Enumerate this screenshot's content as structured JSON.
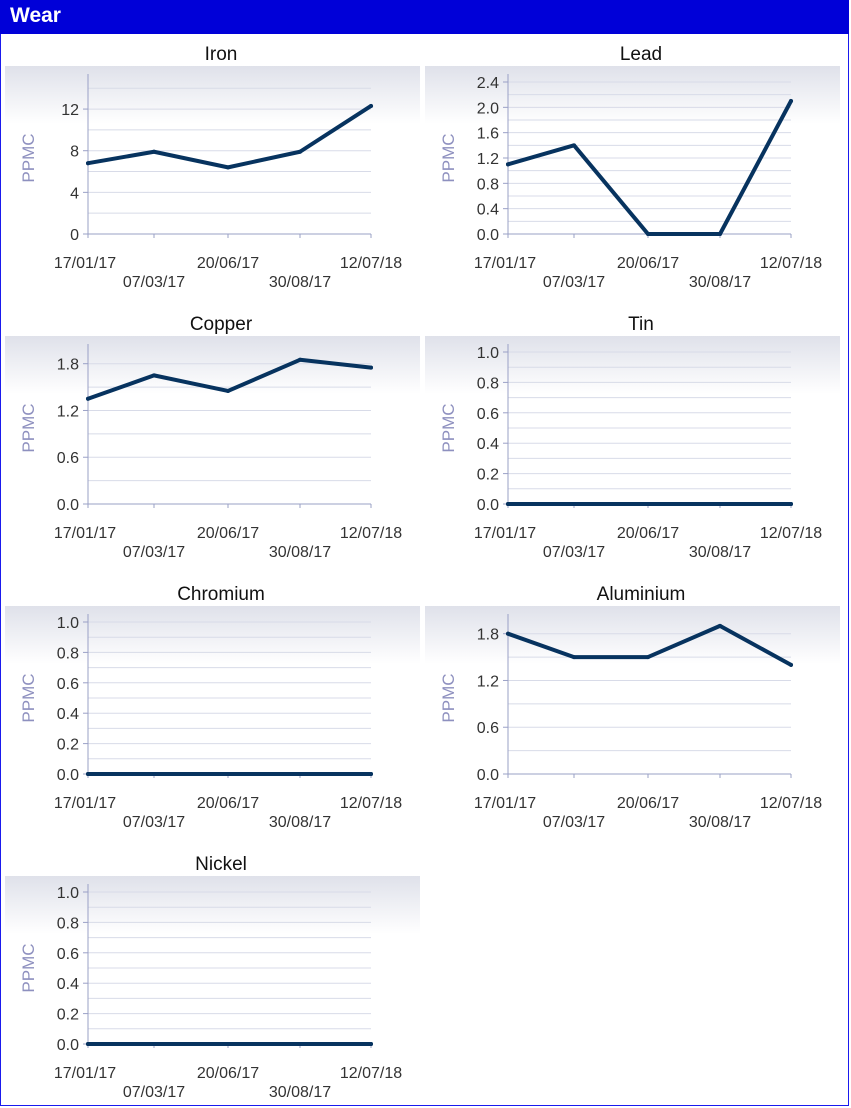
{
  "header": {
    "title": "Wear"
  },
  "colors": {
    "header_bg": "#0000d8",
    "series": "#07335f",
    "axis": "#9aa0c6",
    "tick_text": "#333333",
    "ylabel": "#8e90bf"
  },
  "chart_data": [
    {
      "type": "line",
      "title": "Iron",
      "ylabel": "PPMC",
      "x": [
        "17/01/17",
        "07/03/17",
        "20/06/17",
        "30/08/17",
        "12/07/18"
      ],
      "values": [
        6.8,
        7.9,
        6.4,
        7.9,
        12.3
      ],
      "ylim": [
        0,
        14.6
      ],
      "yticks": [
        "0",
        "4",
        "8",
        "12"
      ],
      "ytick_values": [
        0,
        4,
        8,
        12
      ],
      "grid_values": [
        0,
        2,
        4,
        6,
        8,
        10,
        12,
        14
      ]
    },
    {
      "type": "line",
      "title": "Lead",
      "ylabel": "PPMC",
      "x": [
        "17/01/17",
        "07/03/17",
        "20/06/17",
        "30/08/17",
        "12/07/18"
      ],
      "values": [
        1.1,
        1.4,
        0.0,
        0.0,
        2.1
      ],
      "ylim": [
        0,
        2.4
      ],
      "yticks": [
        "0.0",
        "0.4",
        "0.8",
        "1.2",
        "1.6",
        "2.0",
        "2.4"
      ],
      "ytick_values": [
        0,
        0.4,
        0.8,
        1.2,
        1.6,
        2.0,
        2.4
      ],
      "grid_values": [
        0,
        0.2,
        0.4,
        0.6,
        0.8,
        1.0,
        1.2,
        1.4,
        1.6,
        1.8,
        2.0,
        2.2,
        2.4
      ]
    },
    {
      "type": "line",
      "title": "Copper",
      "ylabel": "PPMC",
      "x": [
        "17/01/17",
        "07/03/17",
        "20/06/17",
        "30/08/17",
        "12/07/18"
      ],
      "values": [
        1.35,
        1.65,
        1.45,
        1.85,
        1.75
      ],
      "ylim": [
        0,
        1.95
      ],
      "yticks": [
        "0.0",
        "0.6",
        "1.2",
        "1.8"
      ],
      "ytick_values": [
        0,
        0.6,
        1.2,
        1.8
      ],
      "grid_values": [
        0,
        0.3,
        0.6,
        0.9,
        1.2,
        1.5,
        1.8
      ]
    },
    {
      "type": "line",
      "title": "Tin",
      "ylabel": "PPMC",
      "x": [
        "17/01/17",
        "07/03/17",
        "20/06/17",
        "30/08/17",
        "12/07/18"
      ],
      "values": [
        0,
        0,
        0,
        0,
        0
      ],
      "ylim": [
        0,
        1.0
      ],
      "yticks": [
        "0.0",
        "0.2",
        "0.4",
        "0.6",
        "0.8",
        "1.0"
      ],
      "ytick_values": [
        0,
        0.2,
        0.4,
        0.6,
        0.8,
        1.0
      ],
      "grid_values": [
        0,
        0.1,
        0.2,
        0.3,
        0.4,
        0.5,
        0.6,
        0.7,
        0.8,
        0.9,
        1.0
      ]
    },
    {
      "type": "line",
      "title": "Chromium",
      "ylabel": "PPMC",
      "x": [
        "17/01/17",
        "07/03/17",
        "20/06/17",
        "30/08/17",
        "12/07/18"
      ],
      "values": [
        0,
        0,
        0,
        0,
        0
      ],
      "ylim": [
        0,
        1.0
      ],
      "yticks": [
        "0.0",
        "0.2",
        "0.4",
        "0.6",
        "0.8",
        "1.0"
      ],
      "ytick_values": [
        0,
        0.2,
        0.4,
        0.6,
        0.8,
        1.0
      ],
      "grid_values": [
        0,
        0.1,
        0.2,
        0.3,
        0.4,
        0.5,
        0.6,
        0.7,
        0.8,
        0.9,
        1.0
      ]
    },
    {
      "type": "line",
      "title": "Aluminium",
      "ylabel": "PPMC",
      "x": [
        "17/01/17",
        "07/03/17",
        "20/06/17",
        "30/08/17",
        "12/07/18"
      ],
      "values": [
        1.8,
        1.5,
        1.5,
        1.9,
        1.4
      ],
      "ylim": [
        0,
        1.95
      ],
      "yticks": [
        "0.0",
        "0.6",
        "1.2",
        "1.8"
      ],
      "ytick_values": [
        0,
        0.6,
        1.2,
        1.8
      ],
      "grid_values": [
        0,
        0.3,
        0.6,
        0.9,
        1.2,
        1.5,
        1.8
      ]
    },
    {
      "type": "line",
      "title": "Nickel",
      "ylabel": "PPMC",
      "x": [
        "17/01/17",
        "07/03/17",
        "20/06/17",
        "30/08/17",
        "12/07/18"
      ],
      "values": [
        0,
        0,
        0,
        0,
        0
      ],
      "ylim": [
        0,
        1.0
      ],
      "yticks": [
        "0.0",
        "0.2",
        "0.4",
        "0.6",
        "0.8",
        "1.0"
      ],
      "ytick_values": [
        0,
        0.2,
        0.4,
        0.6,
        0.8,
        1.0
      ],
      "grid_values": [
        0,
        0.1,
        0.2,
        0.3,
        0.4,
        0.5,
        0.6,
        0.7,
        0.8,
        0.9,
        1.0
      ]
    }
  ]
}
